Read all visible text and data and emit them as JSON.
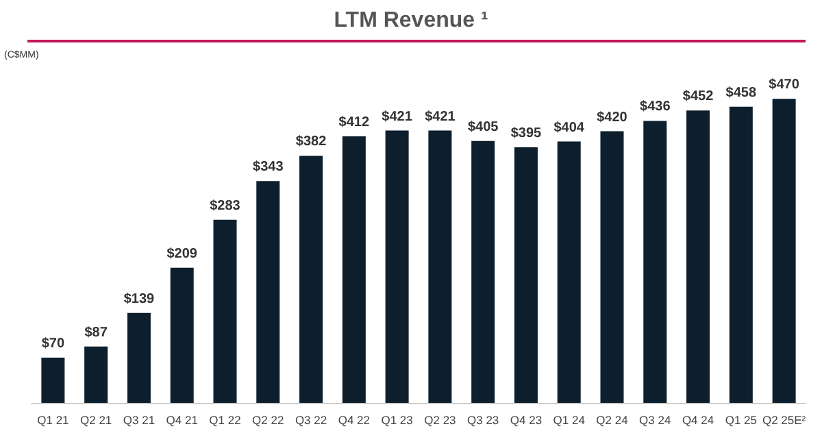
{
  "chart_data": {
    "type": "bar",
    "title": "LTM Revenue ¹",
    "ylabel": "(C$MM)",
    "categories": [
      "Q1 21",
      "Q2 21",
      "Q3 21",
      "Q4 21",
      "Q1 22",
      "Q2 22",
      "Q3 22",
      "Q4 22",
      "Q1 23",
      "Q2 23",
      "Q3 23",
      "Q4 23",
      "Q1 24",
      "Q2 24",
      "Q3 24",
      "Q4 24",
      "Q1 25",
      "Q2 25E²"
    ],
    "values": [
      70,
      87,
      139,
      209,
      283,
      343,
      382,
      412,
      421,
      421,
      405,
      395,
      404,
      420,
      436,
      452,
      458,
      470
    ],
    "value_labels": [
      "$70",
      "$87",
      "$139",
      "$209",
      "$283",
      "$343",
      "$382",
      "$412",
      "$421",
      "$421",
      "$405",
      "$395",
      "$404",
      "$420",
      "$436",
      "$452",
      "$458",
      "$470"
    ],
    "color": "#0d1f2d",
    "grid": false
  }
}
